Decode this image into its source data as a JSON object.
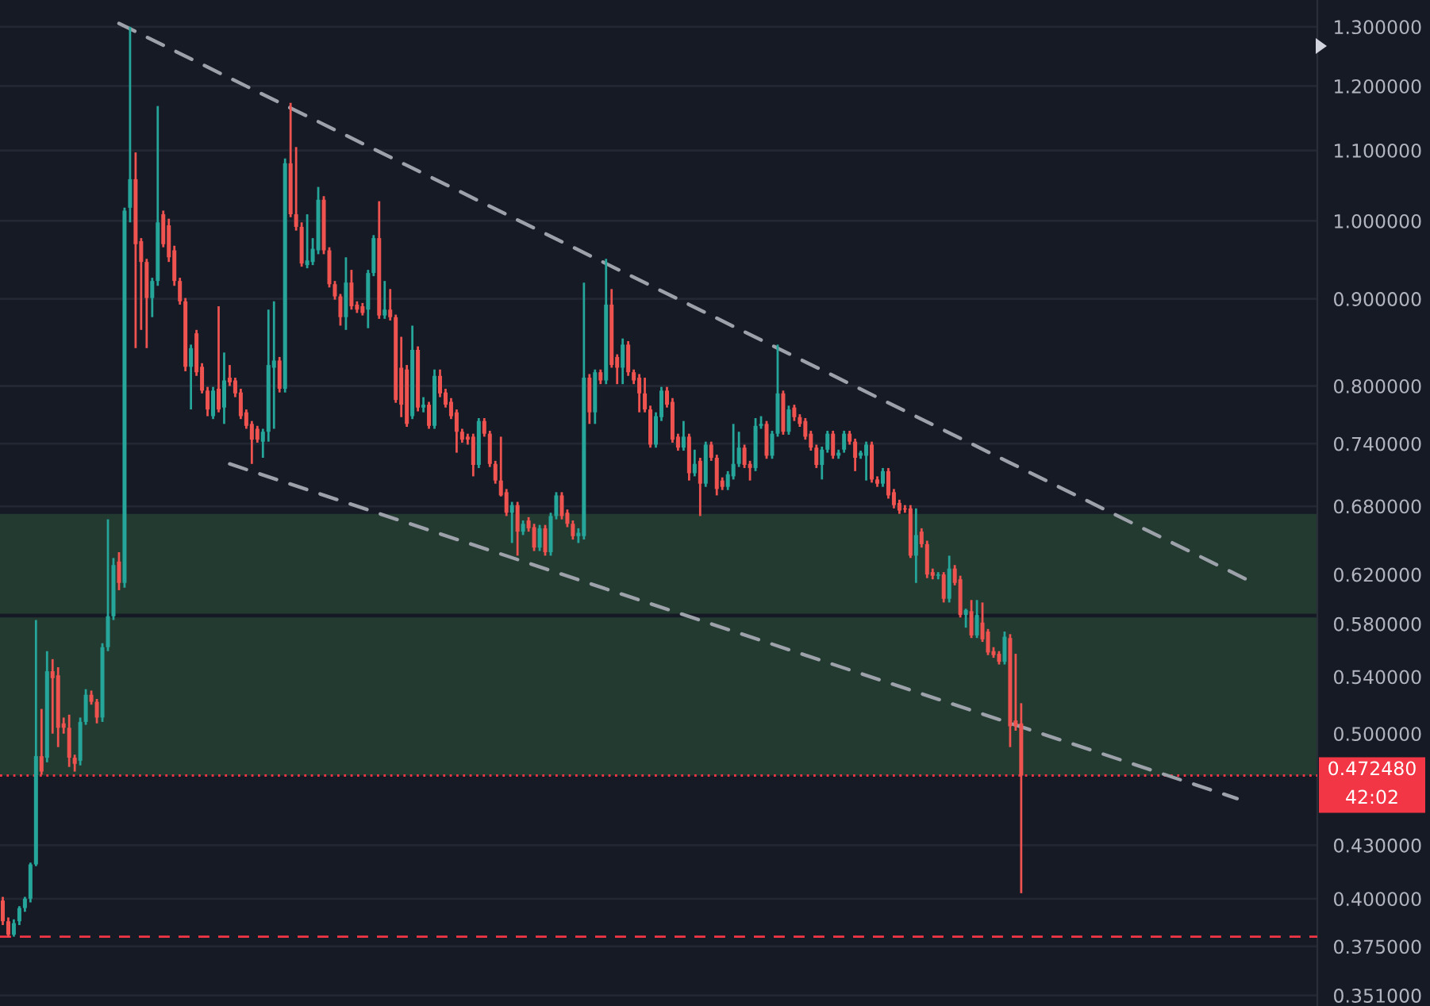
{
  "chart_data": {
    "type": "candlestick",
    "categories": [
      null,
      null,
      null,
      null,
      null,
      null,
      null,
      null,
      null,
      null,
      null,
      null,
      null,
      null,
      null,
      null,
      null,
      null,
      null,
      null,
      null,
      null,
      null,
      null,
      null,
      null,
      null,
      null,
      null,
      null,
      null,
      null,
      null,
      null,
      null,
      null,
      null,
      null,
      null,
      null,
      null,
      null,
      null,
      null,
      null,
      null,
      null,
      null,
      null,
      null,
      null,
      null,
      null,
      null,
      null,
      null,
      null,
      null,
      null,
      null,
      null,
      null,
      null,
      null,
      null,
      null,
      null,
      null,
      null,
      null,
      null,
      null,
      null,
      null,
      null,
      null,
      null,
      null,
      null,
      null,
      null,
      null,
      null,
      null,
      null,
      null,
      null,
      null,
      null,
      null,
      null,
      null,
      null,
      null,
      null,
      null,
      null,
      null,
      null,
      null,
      null,
      null,
      null,
      null,
      null,
      null,
      null,
      null,
      null,
      null,
      null,
      null,
      null,
      null,
      null,
      null,
      null,
      null,
      null,
      null,
      null,
      null,
      null,
      null,
      null,
      null,
      null,
      null,
      null,
      null,
      null,
      null,
      null,
      null,
      null,
      null,
      null,
      null,
      null,
      null,
      null,
      null,
      null,
      null,
      null,
      null,
      null,
      null,
      null,
      null,
      null,
      null,
      null,
      null,
      null,
      null,
      null,
      null,
      null,
      null,
      null,
      null,
      null,
      null,
      null,
      null,
      null,
      null,
      null,
      null,
      null,
      null,
      null,
      null,
      null,
      null,
      null,
      null,
      null,
      null,
      null,
      null,
      null,
      null,
      null,
      null,
      null,
      null,
      null,
      null,
      null,
      null,
      null,
      null,
      null,
      null,
      null,
      null,
      null,
      null,
      null,
      null,
      null,
      null,
      null,
      null,
      null,
      null,
      null,
      null,
      null,
      null,
      null,
      null,
      null,
      null,
      null,
      null,
      null,
      null,
      null,
      null,
      null,
      null,
      null,
      null,
      null,
      null,
      null,
      null,
      null,
      null,
      null,
      null,
      null,
      null,
      null,
      null
    ],
    "ohlc": [
      [
        0.399,
        0.401,
        0.386,
        0.388
      ],
      [
        0.388,
        0.39,
        0.38,
        0.381
      ],
      [
        0.381,
        0.389,
        0.38,
        0.387
      ],
      [
        0.388,
        0.396,
        0.386,
        0.395
      ],
      [
        0.395,
        0.401,
        0.393,
        0.4
      ],
      [
        0.4,
        0.42,
        0.398,
        0.419
      ],
      [
        0.419,
        0.583,
        0.418,
        0.485
      ],
      [
        0.485,
        0.517,
        0.473,
        0.475
      ],
      [
        0.484,
        0.559,
        0.481,
        0.544
      ],
      [
        0.544,
        0.553,
        0.5,
        0.539
      ],
      [
        0.541,
        0.547,
        0.491,
        0.504
      ],
      [
        0.507,
        0.511,
        0.5,
        0.504
      ],
      [
        0.504,
        0.513,
        0.478,
        0.484
      ],
      [
        0.484,
        0.486,
        0.475,
        0.48
      ],
      [
        0.482,
        0.511,
        0.479,
        0.508
      ],
      [
        0.508,
        0.531,
        0.506,
        0.527
      ],
      [
        0.527,
        0.53,
        0.52,
        0.522
      ],
      [
        0.522,
        0.524,
        0.507,
        0.511
      ],
      [
        0.511,
        0.565,
        0.508,
        0.562
      ],
      [
        0.562,
        0.668,
        0.559,
        0.586
      ],
      [
        0.586,
        0.634,
        0.583,
        0.628
      ],
      [
        0.631,
        0.639,
        0.607,
        0.613
      ],
      [
        0.613,
        1.018,
        0.609,
        1.014
      ],
      [
        1.018,
        1.3,
        0.998,
        1.058
      ],
      [
        1.058,
        1.097,
        0.842,
        0.969
      ],
      [
        0.973,
        0.977,
        0.863,
        0.946
      ],
      [
        0.946,
        0.95,
        0.842,
        0.901
      ],
      [
        0.901,
        0.926,
        0.878,
        0.922
      ],
      [
        0.922,
        1.168,
        0.916,
        0.998
      ],
      [
        1.009,
        1.014,
        0.965,
        0.969
      ],
      [
        0.994,
        1.003,
        0.946,
        0.952
      ],
      [
        0.961,
        0.967,
        0.916,
        0.922
      ],
      [
        0.922,
        0.926,
        0.893,
        0.897
      ],
      [
        0.897,
        0.901,
        0.816,
        0.821
      ],
      [
        0.821,
        0.846,
        0.775,
        0.842
      ],
      [
        0.859,
        0.863,
        0.811,
        0.815
      ],
      [
        0.821,
        0.825,
        0.792,
        0.795
      ],
      [
        0.795,
        0.799,
        0.768,
        0.775
      ],
      [
        0.768,
        0.799,
        0.765,
        0.795
      ],
      [
        0.797,
        0.891,
        0.772,
        0.775
      ],
      [
        0.777,
        0.837,
        0.76,
        0.806
      ],
      [
        0.809,
        0.823,
        0.8,
        0.804
      ],
      [
        0.806,
        0.809,
        0.788,
        0.792
      ],
      [
        0.793,
        0.797,
        0.765,
        0.768
      ],
      [
        0.772,
        0.775,
        0.755,
        0.758
      ],
      [
        0.76,
        0.763,
        0.72,
        0.744
      ],
      [
        0.755,
        0.758,
        0.741,
        0.744
      ],
      [
        0.742,
        0.755,
        0.726,
        0.752
      ],
      [
        0.752,
        0.887,
        0.742,
        0.823
      ],
      [
        0.82,
        0.897,
        0.755,
        0.828
      ],
      [
        0.828,
        0.832,
        0.793,
        0.797
      ],
      [
        0.797,
        1.088,
        0.793,
        1.081
      ],
      [
        1.081,
        1.173,
        1.005,
        1.009
      ],
      [
        1.009,
        1.105,
        0.987,
        0.992
      ],
      [
        0.992,
        0.998,
        0.94,
        0.944
      ],
      [
        0.942,
        1.009,
        0.938,
        0.948
      ],
      [
        0.946,
        0.977,
        0.942,
        0.963
      ],
      [
        0.961,
        1.047,
        0.956,
        1.029
      ],
      [
        1.029,
        1.034,
        0.956,
        0.961
      ],
      [
        0.961,
        0.965,
        0.914,
        0.918
      ],
      [
        0.918,
        0.922,
        0.899,
        0.903
      ],
      [
        0.903,
        0.906,
        0.868,
        0.878
      ],
      [
        0.878,
        0.952,
        0.863,
        0.92
      ],
      [
        0.92,
        0.936,
        0.887,
        0.891
      ],
      [
        0.893,
        0.897,
        0.883,
        0.887
      ],
      [
        0.891,
        0.895,
        0.88,
        0.883
      ],
      [
        0.887,
        0.936,
        0.865,
        0.932
      ],
      [
        0.932,
        0.981,
        0.928,
        0.977
      ],
      [
        0.977,
        1.027,
        0.876,
        0.88
      ],
      [
        0.88,
        0.922,
        0.876,
        0.887
      ],
      [
        0.887,
        0.912,
        0.874,
        0.878
      ],
      [
        0.878,
        0.881,
        0.782,
        0.785
      ],
      [
        0.82,
        0.855,
        0.767,
        0.78
      ],
      [
        0.818,
        0.823,
        0.757,
        0.76
      ],
      [
        0.768,
        0.868,
        0.765,
        0.84
      ],
      [
        0.84,
        0.844,
        0.773,
        0.777
      ],
      [
        0.777,
        0.788,
        0.772,
        0.78
      ],
      [
        0.78,
        0.783,
        0.755,
        0.758
      ],
      [
        0.758,
        0.818,
        0.755,
        0.811
      ],
      [
        0.811,
        0.818,
        0.788,
        0.792
      ],
      [
        0.793,
        0.797,
        0.777,
        0.78
      ],
      [
        0.783,
        0.787,
        0.765,
        0.768
      ],
      [
        0.772,
        0.775,
        0.731,
        0.752
      ],
      [
        0.752,
        0.755,
        0.741,
        0.744
      ],
      [
        0.747,
        0.75,
        0.739,
        0.744
      ],
      [
        0.747,
        0.75,
        0.708,
        0.719
      ],
      [
        0.719,
        0.766,
        0.716,
        0.763
      ],
      [
        0.763,
        0.766,
        0.747,
        0.75
      ],
      [
        0.75,
        0.753,
        0.717,
        0.72
      ],
      [
        0.72,
        0.723,
        0.701,
        0.704
      ],
      [
        0.704,
        0.747,
        0.689,
        0.69
      ],
      [
        0.693,
        0.696,
        0.671,
        0.674
      ],
      [
        0.674,
        0.684,
        0.647,
        0.681
      ],
      [
        0.681,
        0.684,
        0.636,
        0.657
      ],
      [
        0.657,
        0.667,
        0.654,
        0.664
      ],
      [
        0.667,
        0.67,
        0.657,
        0.66
      ],
      [
        0.661,
        0.664,
        0.64,
        0.643
      ],
      [
        0.643,
        0.663,
        0.64,
        0.66
      ],
      [
        0.66,
        0.663,
        0.636,
        0.639
      ],
      [
        0.639,
        0.674,
        0.636,
        0.671
      ],
      [
        0.671,
        0.693,
        0.668,
        0.69
      ],
      [
        0.69,
        0.693,
        0.668,
        0.671
      ],
      [
        0.674,
        0.677,
        0.661,
        0.664
      ],
      [
        0.664,
        0.667,
        0.65,
        0.653
      ],
      [
        0.653,
        0.66,
        0.647,
        0.656
      ],
      [
        0.653,
        0.92,
        0.65,
        0.809
      ],
      [
        0.809,
        0.813,
        0.76,
        0.772
      ],
      [
        0.772,
        0.818,
        0.76,
        0.815
      ],
      [
        0.815,
        0.818,
        0.802,
        0.806
      ],
      [
        0.806,
        0.95,
        0.802,
        0.893
      ],
      [
        0.893,
        0.912,
        0.82,
        0.823
      ],
      [
        0.832,
        0.835,
        0.802,
        0.82
      ],
      [
        0.82,
        0.853,
        0.802,
        0.846
      ],
      [
        0.846,
        0.85,
        0.811,
        0.815
      ],
      [
        0.815,
        0.818,
        0.802,
        0.806
      ],
      [
        0.809,
        0.813,
        0.772,
        0.792
      ],
      [
        0.792,
        0.809,
        0.772,
        0.775
      ],
      [
        0.775,
        0.779,
        0.736,
        0.739
      ],
      [
        0.739,
        0.772,
        0.736,
        0.768
      ],
      [
        0.767,
        0.799,
        0.763,
        0.795
      ],
      [
        0.795,
        0.799,
        0.777,
        0.78
      ],
      [
        0.783,
        0.787,
        0.741,
        0.744
      ],
      [
        0.747,
        0.75,
        0.733,
        0.736
      ],
      [
        0.736,
        0.763,
        0.733,
        0.747
      ],
      [
        0.747,
        0.75,
        0.704,
        0.711
      ],
      [
        0.711,
        0.734,
        0.708,
        0.72
      ],
      [
        0.723,
        0.726,
        0.671,
        0.701
      ],
      [
        0.701,
        0.742,
        0.698,
        0.739
      ],
      [
        0.739,
        0.742,
        0.723,
        0.726
      ],
      [
        0.726,
        0.729,
        0.69,
        0.696
      ],
      [
        0.704,
        0.707,
        0.695,
        0.698
      ],
      [
        0.698,
        0.713,
        0.695,
        0.71
      ],
      [
        0.708,
        0.76,
        0.705,
        0.72
      ],
      [
        0.72,
        0.752,
        0.717,
        0.736
      ],
      [
        0.736,
        0.739,
        0.716,
        0.719
      ],
      [
        0.72,
        0.723,
        0.704,
        0.716
      ],
      [
        0.716,
        0.766,
        0.713,
        0.758
      ],
      [
        0.758,
        0.768,
        0.755,
        0.76
      ],
      [
        0.76,
        0.763,
        0.725,
        0.728
      ],
      [
        0.728,
        0.753,
        0.725,
        0.75
      ],
      [
        0.75,
        0.846,
        0.747,
        0.792
      ],
      [
        0.792,
        0.795,
        0.749,
        0.752
      ],
      [
        0.752,
        0.779,
        0.749,
        0.775
      ],
      [
        0.777,
        0.78,
        0.763,
        0.767
      ],
      [
        0.767,
        0.77,
        0.757,
        0.76
      ],
      [
        0.763,
        0.766,
        0.744,
        0.747
      ],
      [
        0.75,
        0.753,
        0.733,
        0.736
      ],
      [
        0.736,
        0.739,
        0.716,
        0.719
      ],
      [
        0.719,
        0.737,
        0.705,
        0.734
      ],
      [
        0.734,
        0.753,
        0.731,
        0.75
      ],
      [
        0.75,
        0.753,
        0.725,
        0.728
      ],
      [
        0.728,
        0.734,
        0.725,
        0.731
      ],
      [
        0.734,
        0.753,
        0.731,
        0.75
      ],
      [
        0.75,
        0.753,
        0.739,
        0.742
      ],
      [
        0.742,
        0.745,
        0.713,
        0.726
      ],
      [
        0.728,
        0.733,
        0.725,
        0.731
      ],
      [
        0.728,
        0.742,
        0.704,
        0.739
      ],
      [
        0.739,
        0.742,
        0.702,
        0.705
      ],
      [
        0.705,
        0.708,
        0.698,
        0.701
      ],
      [
        0.701,
        0.716,
        0.698,
        0.713
      ],
      [
        0.713,
        0.716,
        0.687,
        0.69
      ],
      [
        0.693,
        0.696,
        0.678,
        0.681
      ],
      [
        0.683,
        0.686,
        0.673,
        0.676
      ],
      [
        0.678,
        0.681,
        0.674,
        0.677
      ],
      [
        0.678,
        0.681,
        0.634,
        0.636
      ],
      [
        0.636,
        0.678,
        0.613,
        0.654
      ],
      [
        0.657,
        0.66,
        0.643,
        0.646
      ],
      [
        0.646,
        0.649,
        0.617,
        0.62
      ],
      [
        0.622,
        0.625,
        0.616,
        0.619
      ],
      [
        0.619,
        0.622,
        0.616,
        0.62
      ],
      [
        0.62,
        0.622,
        0.597,
        0.6
      ],
      [
        0.6,
        0.636,
        0.597,
        0.625
      ],
      [
        0.625,
        0.628,
        0.611,
        0.613
      ],
      [
        0.616,
        0.619,
        0.585,
        0.587
      ],
      [
        0.587,
        0.592,
        0.577,
        0.591
      ],
      [
        0.59,
        0.599,
        0.569,
        0.571
      ],
      [
        0.571,
        0.599,
        0.569,
        0.587
      ],
      [
        0.581,
        0.597,
        0.566,
        0.568
      ],
      [
        0.574,
        0.576,
        0.556,
        0.558
      ],
      [
        0.559,
        0.562,
        0.554,
        0.556
      ],
      [
        0.557,
        0.559,
        0.549,
        0.551
      ],
      [
        0.551,
        0.574,
        0.549,
        0.57
      ],
      [
        0.569,
        0.572,
        0.491,
        0.505
      ],
      [
        0.509,
        0.557,
        0.502,
        0.505
      ],
      [
        0.507,
        0.521,
        0.403,
        0.47248
      ],
      null,
      null,
      null,
      null,
      null,
      null,
      null,
      null,
      null,
      null,
      null,
      null,
      null,
      null,
      null,
      null,
      null,
      null,
      null,
      null,
      null,
      null,
      null,
      null,
      null,
      null,
      null,
      null,
      null,
      null,
      null,
      null,
      null,
      null,
      null,
      null,
      null,
      null,
      null,
      null,
      null,
      null,
      null,
      null,
      null,
      null,
      null,
      null,
      null,
      null,
      null,
      null,
      null
    ],
    "colors": [
      "#ef5350",
      "#ef5350",
      "#26a69a",
      "#26a69a",
      "#26a69a",
      "#26a69a",
      "#26a69a",
      "#ef5350",
      "#26a69a",
      "#ef5350",
      "#ef5350",
      "#ef5350",
      "#ef5350",
      "#ef5350",
      "#26a69a",
      "#26a69a",
      "#ef5350",
      "#ef5350",
      "#26a69a",
      "#26a69a",
      "#26a69a",
      "#ef5350",
      "#26a69a",
      "#26a69a",
      "#ef5350",
      "#ef5350",
      "#ef5350",
      "#26a69a",
      "#26a69a",
      "#ef5350",
      "#ef5350",
      "#ef5350",
      "#ef5350",
      "#ef5350",
      "#26a69a",
      "#ef5350",
      "#ef5350",
      "#ef5350",
      "#26a69a",
      "#ef5350",
      "#26a69a",
      "#ef5350",
      "#ef5350",
      "#ef5350",
      "#ef5350",
      "#ef5350",
      "#ef5350",
      "#26a69a",
      "#26a69a",
      "#26a69a",
      "#ef5350",
      "#26a69a",
      "#ef5350",
      "#ef5350",
      "#ef5350",
      "#26a69a",
      "#26a69a",
      "#26a69a",
      "#ef5350",
      "#ef5350",
      "#ef5350",
      "#ef5350",
      "#26a69a",
      "#ef5350",
      "#ef5350",
      "#ef5350",
      "#26a69a",
      "#26a69a",
      "#ef5350",
      "#26a69a",
      "#ef5350",
      "#ef5350",
      "#ef5350",
      "#ef5350",
      "#26a69a",
      "#ef5350",
      "#26a69a",
      "#ef5350",
      "#26a69a",
      "#ef5350",
      "#ef5350",
      "#ef5350",
      "#ef5350",
      "#ef5350",
      "#ef5350",
      "#ef5350",
      "#26a69a",
      "#ef5350",
      "#ef5350",
      "#ef5350",
      "#ef5350",
      "#ef5350",
      "#26a69a",
      "#ef5350",
      "#26a69a",
      "#ef5350",
      "#ef5350",
      "#26a69a",
      "#ef5350",
      "#26a69a",
      "#26a69a",
      "#ef5350",
      "#ef5350",
      "#ef5350",
      "#26a69a",
      "#26a69a",
      "#ef5350",
      "#26a69a",
      "#ef5350",
      "#26a69a",
      "#ef5350",
      "#ef5350",
      "#26a69a",
      "#ef5350",
      "#ef5350",
      "#ef5350",
      "#ef5350",
      "#ef5350",
      "#26a69a",
      "#26a69a",
      "#ef5350",
      "#ef5350",
      "#ef5350",
      "#26a69a",
      "#ef5350",
      "#26a69a",
      "#ef5350",
      "#26a69a",
      "#ef5350",
      "#ef5350",
      "#ef5350",
      "#26a69a",
      "#26a69a",
      "#26a69a",
      "#ef5350",
      "#ef5350",
      "#26a69a",
      "#26a69a",
      "#ef5350",
      "#26a69a",
      "#26a69a",
      "#ef5350",
      "#26a69a",
      "#ef5350",
      "#ef5350",
      "#ef5350",
      "#ef5350",
      "#ef5350",
      "#26a69a",
      "#26a69a",
      "#ef5350",
      "#26a69a",
      "#26a69a",
      "#ef5350",
      "#ef5350",
      "#26a69a",
      "#26a69a",
      "#ef5350",
      "#ef5350",
      "#26a69a",
      "#ef5350",
      "#ef5350",
      "#ef5350",
      "#ef5350",
      "#ef5350",
      "#26a69a",
      "#ef5350",
      "#ef5350",
      "#ef5350",
      "#26a69a",
      "#ef5350",
      "#26a69a",
      "#ef5350",
      "#ef5350",
      "#26a69a",
      "#ef5350",
      "#26a69a",
      "#ef5350",
      "#ef5350",
      "#ef5350",
      "#ef5350",
      "#26a69a",
      "#ef5350",
      "#ef5350",
      "#ef5350",
      null,
      null,
      null,
      null,
      null,
      null,
      null,
      null,
      null,
      null,
      null,
      null,
      null,
      null,
      null,
      null,
      null,
      null,
      null,
      null,
      null,
      null,
      null,
      null,
      null,
      null,
      null,
      null,
      null,
      null,
      null,
      null,
      null,
      null,
      null,
      null,
      null,
      null,
      null,
      null,
      null,
      null,
      null,
      null,
      null,
      null,
      null,
      null,
      null,
      null,
      null,
      null,
      null
    ],
    "series": [
      {
        "type": "line",
        "color": "#9da1aa",
        "line_style": "dashed",
        "values": [
          null,
          null,
          null,
          null,
          null,
          null,
          null,
          null,
          null,
          null,
          null,
          null,
          null,
          null,
          null,
          null,
          null,
          null,
          null,
          null,
          null,
          1.306,
          null,
          null,
          null,
          null,
          null,
          null,
          null,
          null,
          null,
          null,
          null,
          null,
          null,
          null,
          null,
          null,
          null,
          null,
          null,
          null,
          null,
          null,
          null,
          null,
          null,
          null,
          null,
          null,
          null,
          null,
          null,
          null,
          null,
          null,
          null,
          null,
          null,
          null,
          null,
          null,
          null,
          null,
          null,
          null,
          null,
          null,
          null,
          null,
          null,
          null,
          null,
          null,
          null,
          null,
          null,
          null,
          null,
          null,
          null,
          null,
          null,
          null,
          null,
          null,
          null,
          null,
          null,
          null,
          null,
          null,
          null,
          null,
          null,
          null,
          null,
          null,
          null,
          null,
          null,
          null,
          null,
          null,
          null,
          null,
          null,
          null,
          null,
          null,
          null,
          null,
          null,
          null,
          null,
          null,
          null,
          null,
          null,
          null,
          null,
          null,
          null,
          null,
          null,
          null,
          null,
          null,
          null,
          null,
          null,
          null,
          null,
          null,
          null,
          null,
          null,
          null,
          null,
          null,
          null,
          null,
          null,
          null,
          null,
          null,
          null,
          null,
          null,
          null,
          null,
          null,
          null,
          null,
          null,
          null,
          null,
          null,
          null,
          null,
          null,
          null,
          null,
          null,
          null,
          null,
          null,
          null,
          null,
          null,
          null,
          null,
          null,
          null,
          null,
          null,
          null,
          null,
          null,
          null,
          null,
          null,
          null,
          null,
          null,
          null,
          null,
          null,
          null,
          null,
          null,
          null,
          null,
          null,
          null,
          null,
          null,
          null,
          null,
          null,
          null,
          null,
          null,
          null,
          null,
          null,
          null,
          null,
          null,
          null,
          null,
          null,
          null,
          null,
          null,
          null,
          null,
          null,
          null,
          null,
          null,
          null,
          null,
          null,
          null,
          null,
          0.613,
          null,
          null,
          null,
          null,
          null,
          null,
          null,
          null,
          null,
          null,
          null
        ]
      },
      {
        "type": "line",
        "color": "#9da1aa",
        "line_style": "dashed",
        "values": [
          null,
          null,
          null,
          null,
          null,
          null,
          null,
          null,
          null,
          null,
          null,
          null,
          null,
          null,
          null,
          null,
          null,
          null,
          null,
          null,
          null,
          null,
          null,
          null,
          null,
          null,
          null,
          null,
          null,
          null,
          null,
          null,
          null,
          null,
          null,
          null,
          null,
          null,
          null,
          null,
          null,
          0.72,
          null,
          null,
          null,
          null,
          null,
          null,
          null,
          null,
          null,
          null,
          null,
          null,
          null,
          null,
          null,
          null,
          null,
          null,
          null,
          null,
          null,
          null,
          null,
          null,
          null,
          null,
          null,
          null,
          null,
          null,
          null,
          null,
          null,
          null,
          null,
          null,
          null,
          null,
          null,
          null,
          null,
          null,
          null,
          null,
          null,
          null,
          null,
          null,
          null,
          null,
          null,
          null,
          null,
          null,
          null,
          null,
          null,
          null,
          null,
          null,
          null,
          null,
          null,
          null,
          null,
          null,
          null,
          null,
          null,
          null,
          null,
          null,
          null,
          null,
          null,
          null,
          null,
          null,
          null,
          null,
          null,
          null,
          null,
          null,
          null,
          null,
          null,
          null,
          null,
          null,
          null,
          null,
          null,
          null,
          null,
          null,
          null,
          null,
          null,
          null,
          null,
          null,
          null,
          null,
          null,
          null,
          null,
          null,
          null,
          null,
          null,
          null,
          null,
          null,
          null,
          null,
          null,
          null,
          null,
          null,
          null,
          null,
          null,
          null,
          null,
          null,
          null,
          null,
          null,
          null,
          null,
          null,
          null,
          null,
          null,
          null,
          null,
          null,
          null,
          null,
          null,
          null,
          null,
          null,
          null,
          null,
          null,
          null,
          null,
          null,
          null,
          null,
          null,
          null,
          null,
          null,
          null,
          null,
          null,
          null,
          null,
          null,
          null,
          null,
          null,
          null,
          null,
          null,
          null,
          null,
          null,
          null,
          null,
          null,
          null,
          null,
          null,
          null,
          null,
          null,
          null,
          0.458,
          null,
          null,
          null,
          null,
          null,
          null,
          null,
          null,
          null,
          null,
          null,
          null,
          null,
          null
        ]
      }
    ],
    "log": true,
    "ylim": [
      0.346,
      1.348
    ],
    "yticks": [
      {
        "value": 1.3,
        "label": "1.300000"
      },
      {
        "value": 1.2,
        "label": "1.200000"
      },
      {
        "value": 1.1,
        "label": "1.100000"
      },
      {
        "value": 1.0,
        "label": "1.000000"
      },
      {
        "value": 0.9,
        "label": "0.900000"
      },
      {
        "value": 0.8,
        "label": "0.800000"
      },
      {
        "value": 0.74,
        "label": "0.740000"
      },
      {
        "value": 0.68,
        "label": "0.680000"
      },
      {
        "value": 0.62,
        "label": "0.620000"
      },
      {
        "value": 0.58,
        "label": "0.580000"
      },
      {
        "value": 0.54,
        "label": "0.540000"
      },
      {
        "value": 0.5,
        "label": "0.500000"
      },
      {
        "value": 0.43,
        "label": "0.430000"
      },
      {
        "value": 0.4,
        "label": "0.400000"
      },
      {
        "value": 0.375,
        "label": "0.375000"
      },
      {
        "value": 0.351,
        "label": "0.351000"
      }
    ],
    "grid": "y",
    "tick_labels": "y",
    "bands": [
      {
        "axis": "y",
        "from": 0.588,
        "to": 0.673,
        "color": "#223a30"
      },
      {
        "axis": "y",
        "from": 0.47248,
        "to": 0.585,
        "color": "#223a30"
      }
    ],
    "ref_lines": [
      {
        "axis": "y",
        "value": 0.38,
        "color": "#f23645",
        "line_style": "dashed"
      },
      {
        "axis": "y",
        "value": 0.47248,
        "label": "0.472480",
        "color": "#f23645",
        "line_style": "dotted"
      }
    ],
    "annotations": [
      "42:02"
    ]
  }
}
